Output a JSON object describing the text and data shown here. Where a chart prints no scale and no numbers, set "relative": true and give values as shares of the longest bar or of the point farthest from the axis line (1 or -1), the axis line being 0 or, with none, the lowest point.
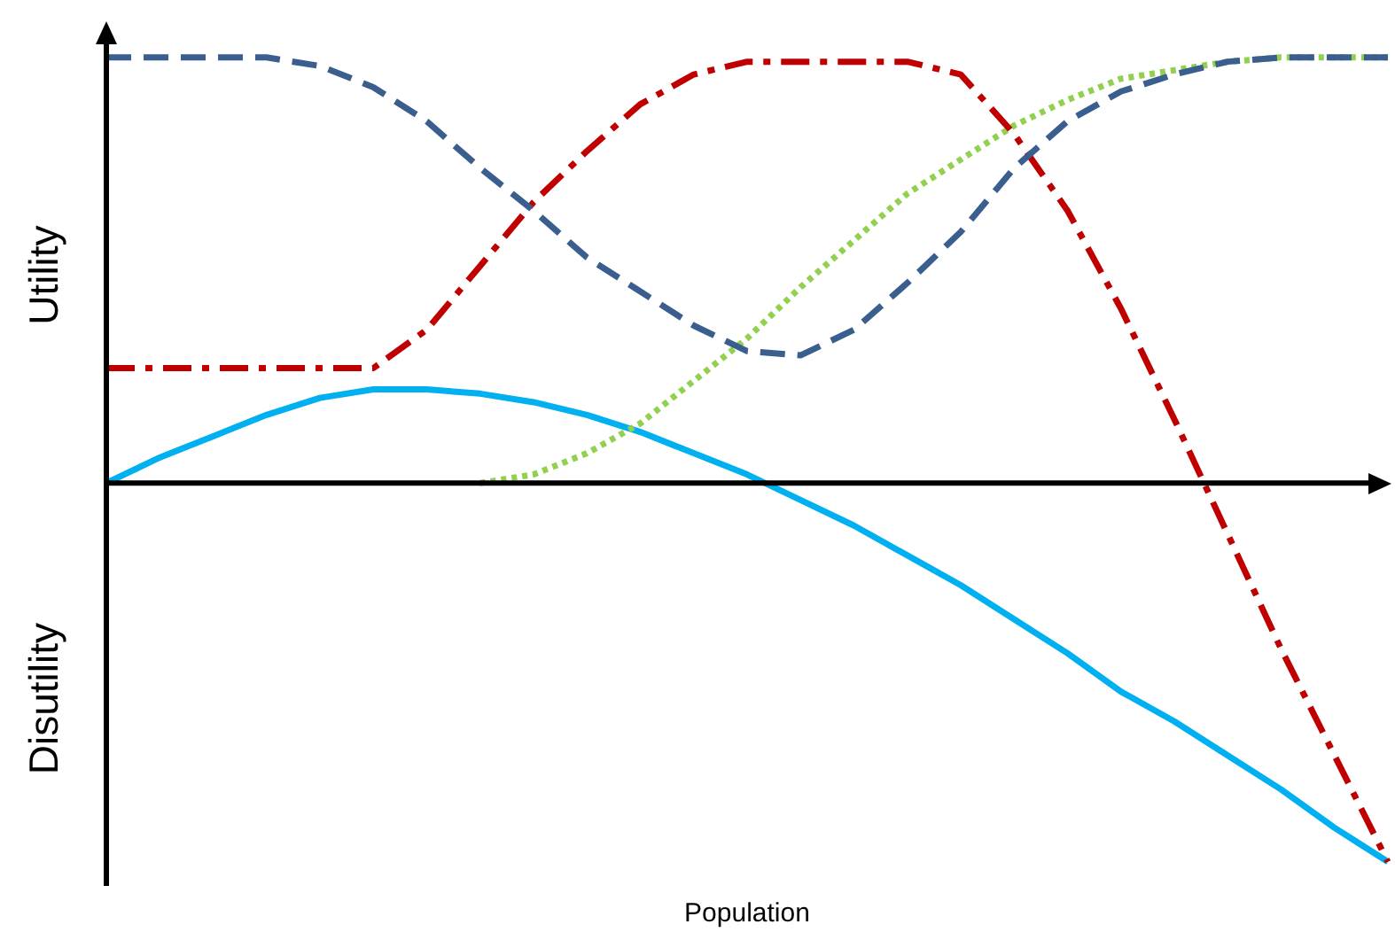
{
  "chart_data": {
    "type": "line",
    "relative": true,
    "xlabel": "Population",
    "ylabel": "Utility",
    "annotations": [
      "Disutility"
    ],
    "legend": false,
    "marker": "none",
    "categories": [
      null,
      null,
      null,
      null,
      null,
      null,
      null,
      null,
      null,
      null,
      null,
      null,
      null,
      null,
      null,
      null,
      null,
      null,
      null,
      null,
      null,
      null,
      null,
      null,
      null
    ],
    "series": [
      {
        "color": "#3a5f8f",
        "line_style": "dashed",
        "values": [
          1.0,
          1.0,
          1.0,
          1.0,
          0.98,
          0.93,
          0.85,
          0.74,
          0.64,
          0.53,
          0.45,
          0.37,
          0.31,
          0.3,
          0.36,
          0.47,
          0.59,
          0.74,
          0.85,
          0.92,
          0.96,
          0.99,
          1.0,
          1.0,
          1.0
        ]
      },
      {
        "color": "#c00000",
        "line_style": "dashdot",
        "values": [
          0.27,
          0.27,
          0.27,
          0.27,
          0.27,
          0.27,
          0.36,
          0.51,
          0.66,
          0.78,
          0.89,
          0.96,
          0.99,
          0.99,
          0.99,
          0.99,
          0.96,
          0.82,
          0.64,
          0.41,
          0.15,
          -0.12,
          -0.39,
          -0.64,
          -0.89
        ]
      },
      {
        "color": "#92d050",
        "line_style": "dotted",
        "values": [
          null,
          null,
          null,
          null,
          null,
          null,
          null,
          0,
          0.02,
          0.07,
          0.14,
          0.24,
          0.34,
          0.46,
          0.57,
          0.68,
          0.76,
          0.84,
          0.9,
          0.95,
          0.97,
          0.99,
          1.0,
          1.0,
          1.0
        ]
      },
      {
        "color": "#00b0f0",
        "line_style": "solid",
        "values": [
          0,
          0.06,
          0.11,
          0.16,
          0.2,
          0.22,
          0.22,
          0.21,
          0.19,
          0.16,
          0.12,
          0.07,
          0.02,
          -0.04,
          -0.1,
          -0.17,
          -0.24,
          -0.32,
          -0.4,
          -0.49,
          -0.56,
          -0.64,
          -0.72,
          -0.81,
          -0.89
        ]
      }
    ]
  }
}
